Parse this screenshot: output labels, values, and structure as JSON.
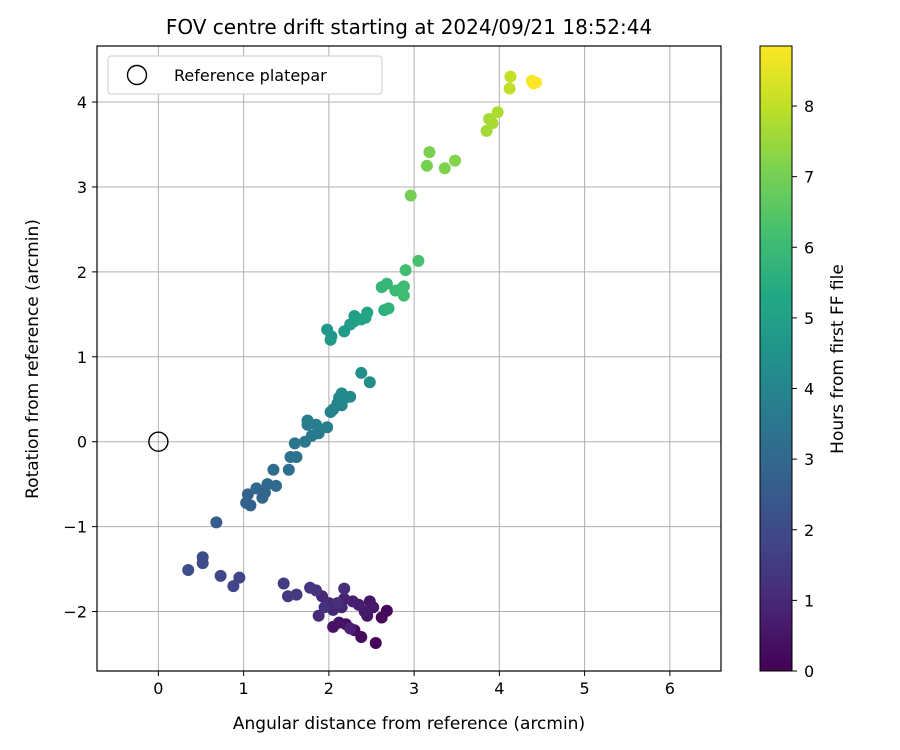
{
  "chart_data": {
    "type": "scatter",
    "title": "FOV centre drift starting at 2024/09/21 18:52:44",
    "xlabel": "Angular distance from reference (arcmin)",
    "ylabel": "Rotation from reference (arcmin)",
    "xlim": [
      -0.72,
      6.6
    ],
    "ylim": [
      -2.7,
      4.66
    ],
    "xticks": [
      0,
      1,
      2,
      3,
      4,
      5,
      6
    ],
    "yticks": [
      -2,
      -1,
      0,
      1,
      2,
      3,
      4
    ],
    "ytick_labels": [
      "−2",
      "−1",
      "0",
      "1",
      "2",
      "3",
      "4"
    ],
    "grid": true,
    "legend": {
      "placement": "top-left",
      "entries": [
        "Reference platepar"
      ]
    },
    "reference_point": {
      "x": 0,
      "y": 0,
      "marker": "open-circle"
    },
    "colorbar": {
      "label": "Hours from first FF file",
      "range": [
        0,
        8.85
      ],
      "ticks": [
        0,
        1,
        2,
        3,
        4,
        5,
        6,
        7,
        8
      ],
      "colormap": "viridis"
    },
    "series": [
      {
        "color_by": "hours",
        "points": [
          {
            "x": 2.55,
            "y": -2.37,
            "c": 0.1
          },
          {
            "x": 2.62,
            "y": -2.07,
            "c": 0.15
          },
          {
            "x": 2.68,
            "y": -1.99,
            "c": 0.2
          },
          {
            "x": 2.38,
            "y": -2.3,
            "c": 0.25
          },
          {
            "x": 2.3,
            "y": -2.22,
            "c": 0.3
          },
          {
            "x": 2.2,
            "y": -2.15,
            "c": 0.35
          },
          {
            "x": 2.05,
            "y": -2.18,
            "c": 0.4
          },
          {
            "x": 2.12,
            "y": -2.13,
            "c": 0.45
          },
          {
            "x": 2.45,
            "y": -2.05,
            "c": 0.5
          },
          {
            "x": 2.48,
            "y": -1.88,
            "c": 0.55
          },
          {
            "x": 2.52,
            "y": -1.95,
            "c": 0.6
          },
          {
            "x": 2.42,
            "y": -2.0,
            "c": 0.65
          },
          {
            "x": 2.35,
            "y": -1.92,
            "c": 0.7
          },
          {
            "x": 2.28,
            "y": -1.88,
            "c": 0.75
          },
          {
            "x": 2.25,
            "y": -2.2,
            "c": 0.8
          },
          {
            "x": 2.18,
            "y": -1.85,
            "c": 0.85
          },
          {
            "x": 2.15,
            "y": -1.95,
            "c": 0.9
          },
          {
            "x": 2.05,
            "y": -1.98,
            "c": 0.95
          },
          {
            "x": 2.0,
            "y": -1.9,
            "c": 1.0
          },
          {
            "x": 1.92,
            "y": -1.82,
            "c": 1.05
          },
          {
            "x": 1.88,
            "y": -2.05,
            "c": 1.1
          },
          {
            "x": 2.18,
            "y": -1.73,
            "c": 1.15
          },
          {
            "x": 2.1,
            "y": -1.9,
            "c": 1.2
          },
          {
            "x": 1.95,
            "y": -1.95,
            "c": 1.25
          },
          {
            "x": 1.85,
            "y": -1.75,
            "c": 1.3
          },
          {
            "x": 1.78,
            "y": -1.72,
            "c": 1.35
          },
          {
            "x": 1.62,
            "y": -1.8,
            "c": 1.45
          },
          {
            "x": 1.52,
            "y": -1.82,
            "c": 1.5
          },
          {
            "x": 1.47,
            "y": -1.67,
            "c": 1.55
          },
          {
            "x": 0.95,
            "y": -1.6,
            "c": 1.8
          },
          {
            "x": 0.88,
            "y": -1.7,
            "c": 1.85
          },
          {
            "x": 0.73,
            "y": -1.58,
            "c": 1.9
          },
          {
            "x": 0.52,
            "y": -1.43,
            "c": 2.0
          },
          {
            "x": 0.52,
            "y": -1.36,
            "c": 2.05
          },
          {
            "x": 0.35,
            "y": -1.51,
            "c": 2.1
          },
          {
            "x": 0.68,
            "y": -0.95,
            "c": 2.6
          },
          {
            "x": 1.08,
            "y": -0.75,
            "c": 2.7
          },
          {
            "x": 1.03,
            "y": -0.72,
            "c": 2.75
          },
          {
            "x": 1.05,
            "y": -0.62,
            "c": 2.8
          },
          {
            "x": 1.22,
            "y": -0.66,
            "c": 2.85
          },
          {
            "x": 1.25,
            "y": -0.6,
            "c": 2.9
          },
          {
            "x": 1.15,
            "y": -0.55,
            "c": 2.95
          },
          {
            "x": 1.28,
            "y": -0.5,
            "c": 3.0
          },
          {
            "x": 1.38,
            "y": -0.52,
            "c": 3.05
          },
          {
            "x": 1.35,
            "y": -0.33,
            "c": 3.15
          },
          {
            "x": 1.53,
            "y": -0.33,
            "c": 3.2
          },
          {
            "x": 1.55,
            "y": -0.18,
            "c": 3.3
          },
          {
            "x": 1.62,
            "y": -0.18,
            "c": 3.35
          },
          {
            "x": 1.6,
            "y": -0.02,
            "c": 3.4
          },
          {
            "x": 1.72,
            "y": 0.0,
            "c": 3.5
          },
          {
            "x": 1.8,
            "y": 0.07,
            "c": 3.55
          },
          {
            "x": 1.88,
            "y": 0.1,
            "c": 3.6
          },
          {
            "x": 1.75,
            "y": 0.2,
            "c": 3.65
          },
          {
            "x": 1.75,
            "y": 0.25,
            "c": 3.7
          },
          {
            "x": 1.85,
            "y": 0.2,
            "c": 3.75
          },
          {
            "x": 1.98,
            "y": 0.17,
            "c": 3.8
          },
          {
            "x": 2.02,
            "y": 0.35,
            "c": 3.85
          },
          {
            "x": 2.05,
            "y": 0.38,
            "c": 3.9
          },
          {
            "x": 2.1,
            "y": 0.45,
            "c": 3.95
          },
          {
            "x": 2.15,
            "y": 0.43,
            "c": 4.0
          },
          {
            "x": 2.12,
            "y": 0.52,
            "c": 4.05
          },
          {
            "x": 2.2,
            "y": 0.52,
            "c": 4.1
          },
          {
            "x": 2.25,
            "y": 0.53,
            "c": 4.15
          },
          {
            "x": 2.15,
            "y": 0.57,
            "c": 4.2
          },
          {
            "x": 2.48,
            "y": 0.7,
            "c": 4.3
          },
          {
            "x": 2.38,
            "y": 0.81,
            "c": 4.35
          },
          {
            "x": 1.98,
            "y": 1.32,
            "c": 4.6
          },
          {
            "x": 2.02,
            "y": 1.2,
            "c": 4.65
          },
          {
            "x": 2.03,
            "y": 1.24,
            "c": 4.7
          },
          {
            "x": 2.18,
            "y": 1.3,
            "c": 4.8
          },
          {
            "x": 2.25,
            "y": 1.38,
            "c": 4.85
          },
          {
            "x": 2.3,
            "y": 1.42,
            "c": 4.9
          },
          {
            "x": 2.3,
            "y": 1.48,
            "c": 4.95
          },
          {
            "x": 2.38,
            "y": 1.44,
            "c": 5.05
          },
          {
            "x": 2.43,
            "y": 1.46,
            "c": 5.15
          },
          {
            "x": 2.45,
            "y": 1.52,
            "c": 5.25
          },
          {
            "x": 2.65,
            "y": 1.55,
            "c": 5.6
          },
          {
            "x": 2.7,
            "y": 1.57,
            "c": 5.7
          },
          {
            "x": 2.62,
            "y": 1.82,
            "c": 5.8
          },
          {
            "x": 2.68,
            "y": 1.86,
            "c": 5.85
          },
          {
            "x": 2.78,
            "y": 1.78,
            "c": 5.95
          },
          {
            "x": 2.85,
            "y": 1.8,
            "c": 6.0
          },
          {
            "x": 2.88,
            "y": 1.83,
            "c": 6.05
          },
          {
            "x": 2.88,
            "y": 1.72,
            "c": 6.1
          },
          {
            "x": 2.9,
            "y": 2.02,
            "c": 6.15
          },
          {
            "x": 3.05,
            "y": 2.13,
            "c": 6.25
          },
          {
            "x": 2.96,
            "y": 2.9,
            "c": 7.0
          },
          {
            "x": 3.15,
            "y": 3.25,
            "c": 7.05
          },
          {
            "x": 3.18,
            "y": 3.41,
            "c": 7.1
          },
          {
            "x": 3.36,
            "y": 3.22,
            "c": 7.15
          },
          {
            "x": 3.48,
            "y": 3.31,
            "c": 7.2
          },
          {
            "x": 3.85,
            "y": 3.66,
            "c": 7.6
          },
          {
            "x": 3.88,
            "y": 3.8,
            "c": 7.65
          },
          {
            "x": 3.92,
            "y": 3.75,
            "c": 7.7
          },
          {
            "x": 3.98,
            "y": 3.88,
            "c": 7.75
          },
          {
            "x": 4.12,
            "y": 4.16,
            "c": 8.0
          },
          {
            "x": 4.13,
            "y": 4.3,
            "c": 8.05
          },
          {
            "x": 4.38,
            "y": 4.25,
            "c": 8.75
          },
          {
            "x": 4.4,
            "y": 4.22,
            "c": 8.8
          },
          {
            "x": 4.43,
            "y": 4.23,
            "c": 8.85
          }
        ]
      }
    ]
  }
}
